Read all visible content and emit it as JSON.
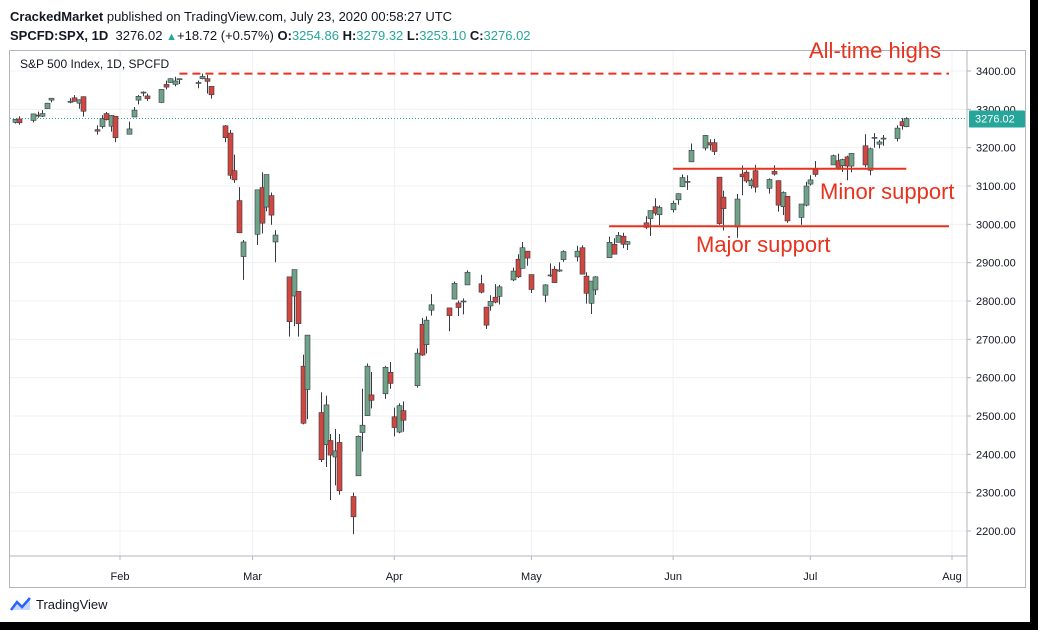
{
  "header": {
    "publisher": "CrackedMarket",
    "published_text": "published on TradingView.com, July 23, 2020 00:58:27 UTC",
    "symbol": "SPCFD:SPX, 1D",
    "last": "3276.02",
    "change_arrow": "▲",
    "change": "+18.72 (+0.57%)",
    "open_label": "O:",
    "open": "3254.86",
    "high_label": "H:",
    "high": "3279.32",
    "low_label": "L:",
    "low": "3253.10",
    "close_label": "C:",
    "close": "3276.02"
  },
  "footer": {
    "brand": "TradingView",
    "logo_icon": "tradingview-logo-icon"
  },
  "colors": {
    "up": "#6fa287",
    "down": "#d0473f",
    "annotation": "#e8321d",
    "last_price": "#26a69a"
  },
  "chart_data": {
    "type": "candlestick",
    "title": "S&P 500 Index, 1D, SPCFD",
    "ylim": [
      2150,
      3450
    ],
    "y_ticks": [
      2200,
      2300,
      2400,
      2500,
      2600,
      2700,
      2800,
      2900,
      3000,
      3100,
      3200,
      3300,
      3400
    ],
    "y_tick_labels": [
      "2200.00",
      "2300.00",
      "2400.00",
      "2500.00",
      "2600.00",
      "2700.00",
      "2800.00",
      "2900.00",
      "3000.00",
      "3100.00",
      "3200.00",
      "3300.00",
      "3400.00"
    ],
    "x_ticks": [
      {
        "label": "Feb",
        "date": "2020-02-01"
      },
      {
        "label": "Mar",
        "date": "2020-03-01"
      },
      {
        "label": "Apr",
        "date": "2020-04-01"
      },
      {
        "label": "May",
        "date": "2020-05-01"
      },
      {
        "label": "Jun",
        "date": "2020-06-01"
      },
      {
        "label": "Jul",
        "date": "2020-07-01"
      },
      {
        "label": "Aug",
        "date": "2020-08-01"
      }
    ],
    "last_price": 3276.02,
    "last_price_label": "3276.02",
    "grid": true,
    "candles": [
      {
        "d": "2020-01-09",
        "o": 3266,
        "h": 3275,
        "l": 3263,
        "c": 3274
      },
      {
        "d": "2020-01-10",
        "o": 3275,
        "h": 3282,
        "l": 3260,
        "c": 3265
      },
      {
        "d": "2020-01-13",
        "o": 3271,
        "h": 3289,
        "l": 3266,
        "c": 3288
      },
      {
        "d": "2020-01-14",
        "o": 3285,
        "h": 3294,
        "l": 3278,
        "c": 3283
      },
      {
        "d": "2020-01-15",
        "o": 3282,
        "h": 3298,
        "l": 3280,
        "c": 3289
      },
      {
        "d": "2020-01-16",
        "o": 3302,
        "h": 3317,
        "l": 3301,
        "c": 3316
      },
      {
        "d": "2020-01-17",
        "o": 3324,
        "h": 3329,
        "l": 3318,
        "c": 3329
      },
      {
        "d": "2020-01-21",
        "o": 3321,
        "h": 3329,
        "l": 3316,
        "c": 3321
      },
      {
        "d": "2020-01-22",
        "o": 3330,
        "h": 3337,
        "l": 3320,
        "c": 3321
      },
      {
        "d": "2020-01-23",
        "o": 3316,
        "h": 3326,
        "l": 3302,
        "c": 3325
      },
      {
        "d": "2020-01-24",
        "o": 3333,
        "h": 3334,
        "l": 3281,
        "c": 3295
      },
      {
        "d": "2020-01-27",
        "o": 3247,
        "h": 3258,
        "l": 3234,
        "c": 3243
      },
      {
        "d": "2020-01-28",
        "o": 3255,
        "h": 3285,
        "l": 3250,
        "c": 3276
      },
      {
        "d": "2020-01-29",
        "o": 3289,
        "h": 3293,
        "l": 3271,
        "c": 3273
      },
      {
        "d": "2020-01-30",
        "o": 3256,
        "h": 3285,
        "l": 3242,
        "c": 3284
      },
      {
        "d": "2020-01-31",
        "o": 3282,
        "h": 3282,
        "l": 3214,
        "c": 3226
      },
      {
        "d": "2020-02-03",
        "o": 3235,
        "h": 3268,
        "l": 3235,
        "c": 3249
      },
      {
        "d": "2020-02-04",
        "o": 3280,
        "h": 3306,
        "l": 3280,
        "c": 3298
      },
      {
        "d": "2020-02-05",
        "o": 3324,
        "h": 3337,
        "l": 3313,
        "c": 3334
      },
      {
        "d": "2020-02-06",
        "o": 3344,
        "h": 3347,
        "l": 3334,
        "c": 3345
      },
      {
        "d": "2020-02-07",
        "o": 3335,
        "h": 3341,
        "l": 3322,
        "c": 3328
      },
      {
        "d": "2020-02-10",
        "o": 3318,
        "h": 3352,
        "l": 3317,
        "c": 3352
      },
      {
        "d": "2020-02-11",
        "o": 3365,
        "h": 3375,
        "l": 3352,
        "c": 3358
      },
      {
        "d": "2020-02-12",
        "o": 3370,
        "h": 3381,
        "l": 3369,
        "c": 3380
      },
      {
        "d": "2020-02-13",
        "o": 3365,
        "h": 3385,
        "l": 3360,
        "c": 3374
      },
      {
        "d": "2020-02-14",
        "o": 3378,
        "h": 3380,
        "l": 3366,
        "c": 3380
      },
      {
        "d": "2020-02-18",
        "o": 3369,
        "h": 3375,
        "l": 3355,
        "c": 3370
      },
      {
        "d": "2020-02-19",
        "o": 3380,
        "h": 3393,
        "l": 3378,
        "c": 3386
      },
      {
        "d": "2020-02-20",
        "o": 3380,
        "h": 3390,
        "l": 3341,
        "c": 3373
      },
      {
        "d": "2020-02-21",
        "o": 3360,
        "h": 3360,
        "l": 3328,
        "c": 3338
      },
      {
        "d": "2020-02-24",
        "o": 3257,
        "h": 3259,
        "l": 3214,
        "c": 3226
      },
      {
        "d": "2020-02-25",
        "o": 3238,
        "h": 3246,
        "l": 3118,
        "c": 3128
      },
      {
        "d": "2020-02-26",
        "o": 3140,
        "h": 3182,
        "l": 3108,
        "c": 3116
      },
      {
        "d": "2020-02-27",
        "o": 3062,
        "h": 3097,
        "l": 2977,
        "c": 2978
      },
      {
        "d": "2020-02-28",
        "o": 2916,
        "h": 2959,
        "l": 2855,
        "c": 2954
      },
      {
        "d": "2020-03-02",
        "o": 2974,
        "h": 3091,
        "l": 2946,
        "c": 3090
      },
      {
        "d": "2020-03-03",
        "o": 3096,
        "h": 3136,
        "l": 2976,
        "c": 3003
      },
      {
        "d": "2020-03-04",
        "o": 3045,
        "h": 3130,
        "l": 3034,
        "c": 3130
      },
      {
        "d": "2020-03-05",
        "o": 3075,
        "h": 3083,
        "l": 2999,
        "c": 3024
      },
      {
        "d": "2020-03-06",
        "o": 2954,
        "h": 2985,
        "l": 2901,
        "c": 2972
      },
      {
        "d": "2020-03-09",
        "o": 2863,
        "h": 2863,
        "l": 2707,
        "c": 2746
      },
      {
        "d": "2020-03-10",
        "o": 2813,
        "h": 2882,
        "l": 2734,
        "c": 2882
      },
      {
        "d": "2020-03-11",
        "o": 2825,
        "h": 2825,
        "l": 2707,
        "c": 2741
      },
      {
        "d": "2020-03-12",
        "o": 2630,
        "h": 2660,
        "l": 2478,
        "c": 2481
      },
      {
        "d": "2020-03-13",
        "o": 2569,
        "h": 2711,
        "l": 2492,
        "c": 2711
      },
      {
        "d": "2020-03-16",
        "o": 2509,
        "h": 2562,
        "l": 2380,
        "c": 2386
      },
      {
        "d": "2020-03-17",
        "o": 2425,
        "h": 2553,
        "l": 2367,
        "c": 2529
      },
      {
        "d": "2020-03-18",
        "o": 2436,
        "h": 2453,
        "l": 2281,
        "c": 2398
      },
      {
        "d": "2020-03-19",
        "o": 2393,
        "h": 2466,
        "l": 2319,
        "c": 2409
      },
      {
        "d": "2020-03-20",
        "o": 2431,
        "h": 2453,
        "l": 2295,
        "c": 2305
      },
      {
        "d": "2020-03-23",
        "o": 2290,
        "h": 2300,
        "l": 2192,
        "c": 2237
      },
      {
        "d": "2020-03-24",
        "o": 2344,
        "h": 2449,
        "l": 2344,
        "c": 2447
      },
      {
        "d": "2020-03-25",
        "o": 2457,
        "h": 2571,
        "l": 2407,
        "c": 2476
      },
      {
        "d": "2020-03-26",
        "o": 2501,
        "h": 2637,
        "l": 2500,
        "c": 2630
      },
      {
        "d": "2020-03-27",
        "o": 2555,
        "h": 2615,
        "l": 2520,
        "c": 2541
      },
      {
        "d": "2020-03-30",
        "o": 2558,
        "h": 2631,
        "l": 2545,
        "c": 2627
      },
      {
        "d": "2020-03-31",
        "o": 2614,
        "h": 2641,
        "l": 2571,
        "c": 2585
      },
      {
        "d": "2020-04-01",
        "o": 2498,
        "h": 2522,
        "l": 2447,
        "c": 2470
      },
      {
        "d": "2020-04-02",
        "o": 2458,
        "h": 2533,
        "l": 2455,
        "c": 2527
      },
      {
        "d": "2020-04-03",
        "o": 2514,
        "h": 2538,
        "l": 2459,
        "c": 2489
      },
      {
        "d": "2020-04-06",
        "o": 2579,
        "h": 2676,
        "l": 2574,
        "c": 2664
      },
      {
        "d": "2020-04-07",
        "o": 2739,
        "h": 2756,
        "l": 2657,
        "c": 2659
      },
      {
        "d": "2020-04-08",
        "o": 2686,
        "h": 2760,
        "l": 2663,
        "c": 2750
      },
      {
        "d": "2020-04-09",
        "o": 2776,
        "h": 2818,
        "l": 2762,
        "c": 2790
      },
      {
        "d": "2020-04-13",
        "o": 2782,
        "h": 2782,
        "l": 2721,
        "c": 2762
      },
      {
        "d": "2020-04-14",
        "o": 2805,
        "h": 2851,
        "l": 2805,
        "c": 2846
      },
      {
        "d": "2020-04-15",
        "o": 2795,
        "h": 2801,
        "l": 2761,
        "c": 2783
      },
      {
        "d": "2020-04-16",
        "o": 2799,
        "h": 2807,
        "l": 2765,
        "c": 2800
      },
      {
        "d": "2020-04-17",
        "o": 2842,
        "h": 2880,
        "l": 2842,
        "c": 2875
      },
      {
        "d": "2020-04-20",
        "o": 2845,
        "h": 2868,
        "l": 2820,
        "c": 2823
      },
      {
        "d": "2020-04-21",
        "o": 2784,
        "h": 2785,
        "l": 2727,
        "c": 2737
      },
      {
        "d": "2020-04-22",
        "o": 2787,
        "h": 2815,
        "l": 2775,
        "c": 2799
      },
      {
        "d": "2020-04-23",
        "o": 2810,
        "h": 2844,
        "l": 2794,
        "c": 2797
      },
      {
        "d": "2020-04-24",
        "o": 2812,
        "h": 2842,
        "l": 2791,
        "c": 2837
      },
      {
        "d": "2020-04-27",
        "o": 2855,
        "h": 2887,
        "l": 2852,
        "c": 2878
      },
      {
        "d": "2020-04-28",
        "o": 2909,
        "h": 2922,
        "l": 2860,
        "c": 2863
      },
      {
        "d": "2020-04-29",
        "o": 2885,
        "h": 2954,
        "l": 2885,
        "c": 2939
      },
      {
        "d": "2020-04-30",
        "o": 2930,
        "h": 2930,
        "l": 2892,
        "c": 2912
      },
      {
        "d": "2020-05-01",
        "o": 2869,
        "h": 2869,
        "l": 2821,
        "c": 2830
      },
      {
        "d": "2020-05-04",
        "o": 2815,
        "h": 2844,
        "l": 2797,
        "c": 2842
      },
      {
        "d": "2020-05-05",
        "o": 2868,
        "h": 2898,
        "l": 2863,
        "c": 2868
      },
      {
        "d": "2020-05-06",
        "o": 2883,
        "h": 2891,
        "l": 2847,
        "c": 2848
      },
      {
        "d": "2020-05-07",
        "o": 2878,
        "h": 2901,
        "l": 2876,
        "c": 2881
      },
      {
        "d": "2020-05-08",
        "o": 2908,
        "h": 2932,
        "l": 2902,
        "c": 2929
      },
      {
        "d": "2020-05-11",
        "o": 2915,
        "h": 2944,
        "l": 2903,
        "c": 2930
      },
      {
        "d": "2020-05-12",
        "o": 2939,
        "h": 2945,
        "l": 2869,
        "c": 2870
      },
      {
        "d": "2020-05-13",
        "o": 2865,
        "h": 2875,
        "l": 2793,
        "c": 2820
      },
      {
        "d": "2020-05-14",
        "o": 2794,
        "h": 2852,
        "l": 2766,
        "c": 2852
      },
      {
        "d": "2020-05-15",
        "o": 2829,
        "h": 2865,
        "l": 2816,
        "c": 2863
      },
      {
        "d": "2020-05-18",
        "o": 2913,
        "h": 2968,
        "l": 2913,
        "c": 2953
      },
      {
        "d": "2020-05-19",
        "o": 2948,
        "h": 2964,
        "l": 2922,
        "c": 2922
      },
      {
        "d": "2020-05-20",
        "o": 2953,
        "h": 2980,
        "l": 2953,
        "c": 2971
      },
      {
        "d": "2020-05-21",
        "o": 2969,
        "h": 2978,
        "l": 2938,
        "c": 2948
      },
      {
        "d": "2020-05-22",
        "o": 2948,
        "h": 2956,
        "l": 2933,
        "c": 2955
      },
      {
        "d": "2020-05-26",
        "o": 3004,
        "h": 3021,
        "l": 2988,
        "c": 2992
      },
      {
        "d": "2020-05-27",
        "o": 3015,
        "h": 3036,
        "l": 2970,
        "c": 3036
      },
      {
        "d": "2020-05-28",
        "o": 3046,
        "h": 3068,
        "l": 3023,
        "c": 3029
      },
      {
        "d": "2020-05-29",
        "o": 3025,
        "h": 3049,
        "l": 2998,
        "c": 3044
      },
      {
        "d": "2020-06-01",
        "o": 3038,
        "h": 3062,
        "l": 3031,
        "c": 3055
      },
      {
        "d": "2020-06-02",
        "o": 3064,
        "h": 3081,
        "l": 3051,
        "c": 3080
      },
      {
        "d": "2020-06-03",
        "o": 3098,
        "h": 3130,
        "l": 3098,
        "c": 3122
      },
      {
        "d": "2020-06-04",
        "o": 3111,
        "h": 3128,
        "l": 3090,
        "c": 3112
      },
      {
        "d": "2020-06-05",
        "o": 3163,
        "h": 3211,
        "l": 3163,
        "c": 3193
      },
      {
        "d": "2020-06-08",
        "o": 3199,
        "h": 3233,
        "l": 3193,
        "c": 3232
      },
      {
        "d": "2020-06-09",
        "o": 3213,
        "h": 3222,
        "l": 3193,
        "c": 3207
      },
      {
        "d": "2020-06-10",
        "o": 3213,
        "h": 3223,
        "l": 3181,
        "c": 3190
      },
      {
        "d": "2020-06-11",
        "o": 3123,
        "h": 3123,
        "l": 2999,
        "c": 3002
      },
      {
        "d": "2020-06-12",
        "o": 3071,
        "h": 3088,
        "l": 2984,
        "c": 3041
      },
      {
        "d": "2020-06-15",
        "o": 2993,
        "h": 3079,
        "l": 2965,
        "c": 3066
      },
      {
        "d": "2020-06-16",
        "o": 3131,
        "h": 3153,
        "l": 3076,
        "c": 3124
      },
      {
        "d": "2020-06-17",
        "o": 3136,
        "h": 3141,
        "l": 3108,
        "c": 3113
      },
      {
        "d": "2020-06-18",
        "o": 3101,
        "h": 3120,
        "l": 3093,
        "c": 3115
      },
      {
        "d": "2020-06-19",
        "o": 3140,
        "h": 3155,
        "l": 3083,
        "c": 3097
      },
      {
        "d": "2020-06-22",
        "o": 3094,
        "h": 3120,
        "l": 3080,
        "c": 3117
      },
      {
        "d": "2020-06-23",
        "o": 3138,
        "h": 3154,
        "l": 3127,
        "c": 3131
      },
      {
        "d": "2020-06-24",
        "o": 3114,
        "h": 3115,
        "l": 3033,
        "c": 3050
      },
      {
        "d": "2020-06-25",
        "o": 3046,
        "h": 3086,
        "l": 3024,
        "c": 3083
      },
      {
        "d": "2020-06-26",
        "o": 3073,
        "h": 3073,
        "l": 3004,
        "c": 3009
      },
      {
        "d": "2020-06-29",
        "o": 3018,
        "h": 3053,
        "l": 2999,
        "c": 3053
      },
      {
        "d": "2020-06-30",
        "o": 3050,
        "h": 3111,
        "l": 3047,
        "c": 3100
      },
      {
        "d": "2020-07-01",
        "o": 3105,
        "h": 3128,
        "l": 3101,
        "c": 3116
      },
      {
        "d": "2020-07-02",
        "o": 3143,
        "h": 3165,
        "l": 3124,
        "c": 3130
      },
      {
        "d": "2020-07-06",
        "o": 3155,
        "h": 3182,
        "l": 3155,
        "c": 3179
      },
      {
        "d": "2020-07-07",
        "o": 3166,
        "h": 3184,
        "l": 3142,
        "c": 3145
      },
      {
        "d": "2020-07-08",
        "o": 3153,
        "h": 3171,
        "l": 3137,
        "c": 3169
      },
      {
        "d": "2020-07-09",
        "o": 3176,
        "h": 3179,
        "l": 3115,
        "c": 3152
      },
      {
        "d": "2020-07-10",
        "o": 3152,
        "h": 3186,
        "l": 3136,
        "c": 3185
      },
      {
        "d": "2020-07-13",
        "o": 3205,
        "h": 3235,
        "l": 3149,
        "c": 3155
      },
      {
        "d": "2020-07-14",
        "o": 3141,
        "h": 3200,
        "l": 3128,
        "c": 3197
      },
      {
        "d": "2020-07-15",
        "o": 3225,
        "h": 3238,
        "l": 3200,
        "c": 3227
      },
      {
        "d": "2020-07-16",
        "o": 3209,
        "h": 3220,
        "l": 3198,
        "c": 3215
      },
      {
        "d": "2020-07-17",
        "o": 3224,
        "h": 3233,
        "l": 3205,
        "c": 3225
      },
      {
        "d": "2020-07-20",
        "o": 3224,
        "h": 3258,
        "l": 3216,
        "c": 3251
      },
      {
        "d": "2020-07-21",
        "o": 3268,
        "h": 3277,
        "l": 3247,
        "c": 3257
      },
      {
        "d": "2020-07-22",
        "o": 3254.86,
        "h": 3279.32,
        "l": 3253.1,
        "c": 3276.02
      }
    ],
    "annotations": [
      {
        "name": "all-time-highs",
        "text": "All-time highs",
        "level": 3393,
        "from": "2020-02-14",
        "to": "2020-08-01",
        "style": "dashed"
      },
      {
        "name": "minor-support",
        "text": "Minor support",
        "level": 3145,
        "from": "2020-06-01",
        "to": "2020-07-22",
        "style": "solid"
      },
      {
        "name": "major-support",
        "text": "Major support",
        "level": 2995,
        "from": "2020-05-18",
        "to": "2020-08-01",
        "style": "solid"
      }
    ]
  }
}
